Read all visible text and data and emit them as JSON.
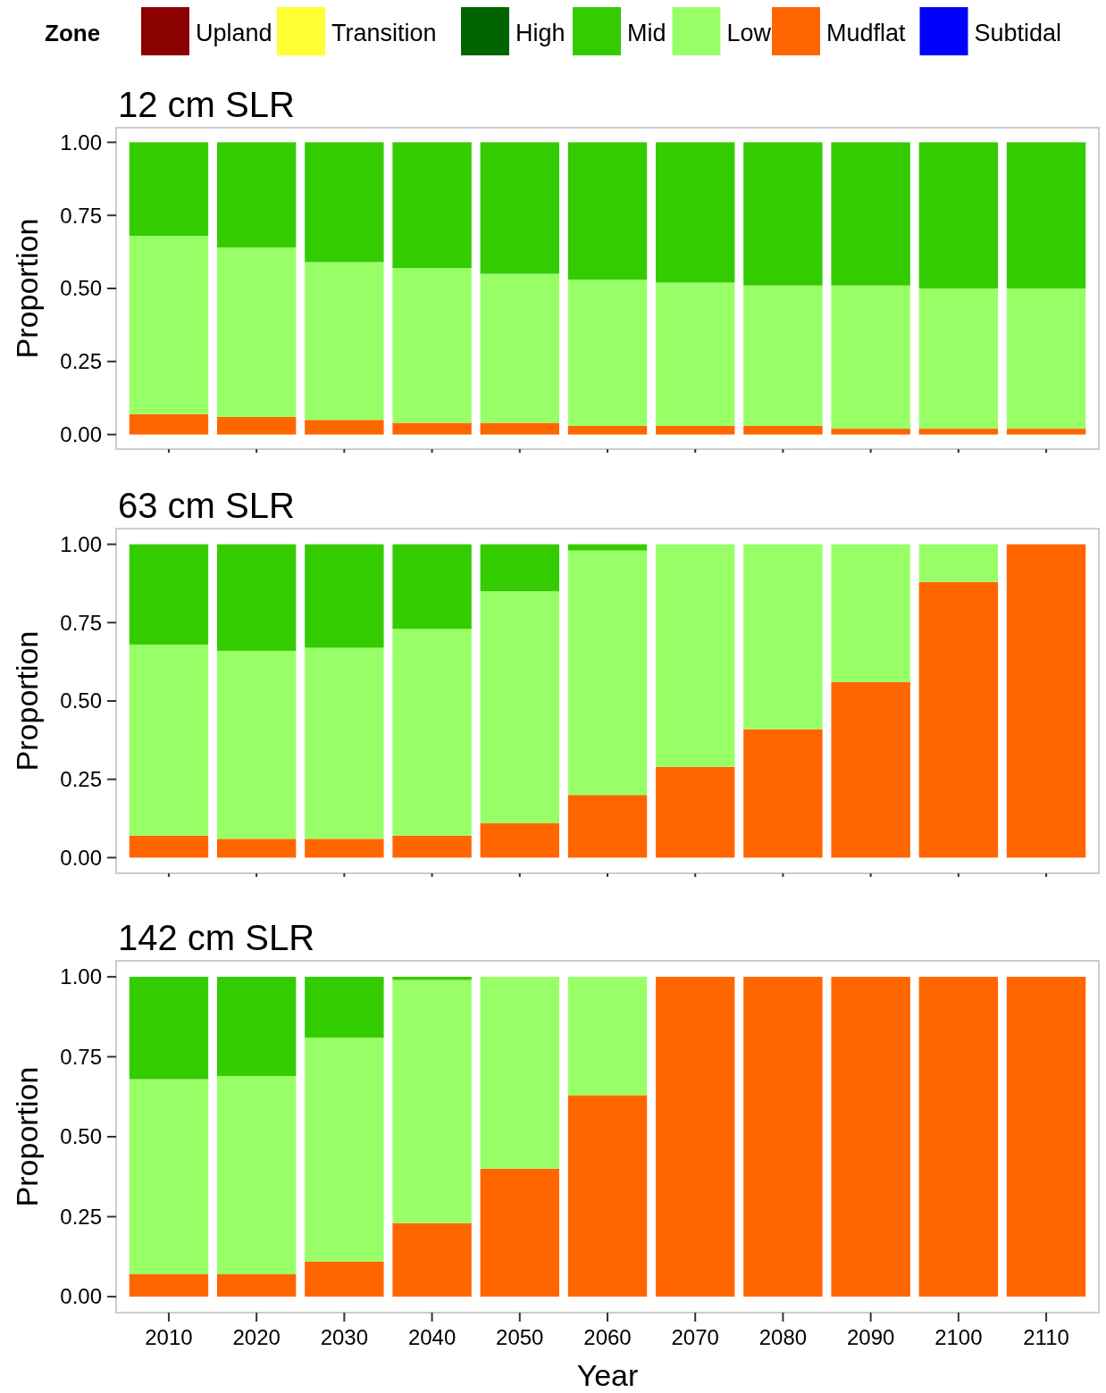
{
  "chart_data": [
    {
      "type": "bar",
      "stacked": true,
      "title": "12 cm SLR",
      "ylabel": "Proportion",
      "legend": "top",
      "legend_title": "Zone",
      "grid": false,
      "tick_labels": "y",
      "categories": [
        "2010",
        "2020",
        "2030",
        "2040",
        "2050",
        "2060",
        "2070",
        "2080",
        "2090",
        "2100",
        "2110"
      ],
      "ylim": [
        -0.05,
        1.05
      ],
      "yticks": [
        {
          "value": 0,
          "label": "0.00"
        },
        {
          "value": 0.25,
          "label": "0.25"
        },
        {
          "value": 0.5,
          "label": "0.50"
        },
        {
          "value": 0.75,
          "label": "0.75"
        },
        {
          "value": 1,
          "label": "1.00"
        }
      ],
      "series": [
        {
          "name": "Subtidal",
          "color": "#0000ff",
          "values": [
            0,
            0,
            0,
            0,
            0,
            0,
            0,
            0,
            0,
            0,
            0
          ]
        },
        {
          "name": "Mudflat",
          "color": "#ff6600",
          "values": [
            0.07,
            0.06,
            0.05,
            0.04,
            0.04,
            0.03,
            0.03,
            0.03,
            0.02,
            0.02,
            0.02
          ]
        },
        {
          "name": "Low",
          "color": "#99ff66",
          "values": [
            0.61,
            0.58,
            0.54,
            0.53,
            0.51,
            0.5,
            0.49,
            0.48,
            0.49,
            0.48,
            0.48
          ]
        },
        {
          "name": "Mid",
          "color": "#33cc00",
          "values": [
            0.32,
            0.36,
            0.41,
            0.43,
            0.45,
            0.47,
            0.48,
            0.49,
            0.49,
            0.5,
            0.5
          ]
        },
        {
          "name": "High",
          "color": "#006400",
          "values": [
            0,
            0,
            0,
            0,
            0,
            0,
            0,
            0,
            0,
            0,
            0
          ]
        },
        {
          "name": "Transition",
          "color": "#ffff33",
          "values": [
            0,
            0,
            0,
            0,
            0,
            0,
            0,
            0,
            0,
            0,
            0
          ]
        },
        {
          "name": "Upland",
          "color": "#8b0000",
          "values": [
            0,
            0,
            0,
            0,
            0,
            0,
            0,
            0,
            0,
            0,
            0
          ]
        }
      ]
    },
    {
      "type": "bar",
      "stacked": true,
      "title": "63 cm SLR",
      "ylabel": "Proportion",
      "grid": false,
      "tick_labels": "y",
      "categories": [
        "2010",
        "2020",
        "2030",
        "2040",
        "2050",
        "2060",
        "2070",
        "2080",
        "2090",
        "2100",
        "2110"
      ],
      "ylim": [
        -0.05,
        1.05
      ],
      "yticks": [
        {
          "value": 0,
          "label": "0.00"
        },
        {
          "value": 0.25,
          "label": "0.25"
        },
        {
          "value": 0.5,
          "label": "0.50"
        },
        {
          "value": 0.75,
          "label": "0.75"
        },
        {
          "value": 1,
          "label": "1.00"
        }
      ],
      "series": [
        {
          "color": "#0000ff",
          "values": [
            0,
            0,
            0,
            0,
            0,
            0,
            0,
            0,
            0,
            0,
            0
          ]
        },
        {
          "color": "#ff6600",
          "values": [
            0.07,
            0.06,
            0.06,
            0.07,
            0.11,
            0.2,
            0.29,
            0.41,
            0.56,
            0.88,
            1.0
          ]
        },
        {
          "color": "#99ff66",
          "values": [
            0.61,
            0.6,
            0.61,
            0.66,
            0.74,
            0.78,
            0.71,
            0.59,
            0.44,
            0.12,
            0
          ]
        },
        {
          "color": "#33cc00",
          "values": [
            0.32,
            0.34,
            0.33,
            0.27,
            0.15,
            0.02,
            0,
            0,
            0,
            0,
            0
          ]
        },
        {
          "color": "#006400",
          "values": [
            0,
            0,
            0,
            0,
            0,
            0,
            0,
            0,
            0,
            0,
            0
          ]
        },
        {
          "color": "#ffff33",
          "values": [
            0,
            0,
            0,
            0,
            0,
            0,
            0,
            0,
            0,
            0,
            0
          ]
        },
        {
          "color": "#8b0000",
          "values": [
            0,
            0,
            0,
            0,
            0,
            0,
            0,
            0,
            0,
            0,
            0
          ]
        }
      ]
    },
    {
      "type": "bar",
      "stacked": true,
      "title": "142 cm SLR",
      "ylabel": "Proportion",
      "xlabel": "Year",
      "grid": false,
      "categories": [
        "2010",
        "2020",
        "2030",
        "2040",
        "2050",
        "2060",
        "2070",
        "2080",
        "2090",
        "2100",
        "2110"
      ],
      "ylim": [
        -0.05,
        1.05
      ],
      "yticks": [
        {
          "value": 0,
          "label": "0.00"
        },
        {
          "value": 0.25,
          "label": "0.25"
        },
        {
          "value": 0.5,
          "label": "0.50"
        },
        {
          "value": 0.75,
          "label": "0.75"
        },
        {
          "value": 1,
          "label": "1.00"
        }
      ],
      "series": [
        {
          "color": "#0000ff",
          "values": [
            0,
            0,
            0,
            0,
            0,
            0,
            0,
            0,
            0,
            0,
            0
          ]
        },
        {
          "color": "#ff6600",
          "values": [
            0.07,
            0.07,
            0.11,
            0.23,
            0.4,
            0.63,
            1.0,
            1.0,
            1.0,
            1.0,
            1.0
          ]
        },
        {
          "color": "#99ff66",
          "values": [
            0.61,
            0.62,
            0.7,
            0.76,
            0.6,
            0.37,
            0,
            0,
            0,
            0,
            0
          ]
        },
        {
          "color": "#33cc00",
          "values": [
            0.32,
            0.31,
            0.19,
            0.01,
            0,
            0,
            0,
            0,
            0,
            0,
            0
          ]
        },
        {
          "color": "#006400",
          "values": [
            0,
            0,
            0,
            0,
            0,
            0,
            0,
            0,
            0,
            0,
            0
          ]
        },
        {
          "color": "#ffff33",
          "values": [
            0,
            0,
            0,
            0,
            0,
            0,
            0,
            0,
            0,
            0,
            0
          ]
        },
        {
          "color": "#8b0000",
          "values": [
            0,
            0,
            0,
            0,
            0,
            0,
            0,
            0,
            0,
            0,
            0
          ]
        }
      ]
    }
  ]
}
